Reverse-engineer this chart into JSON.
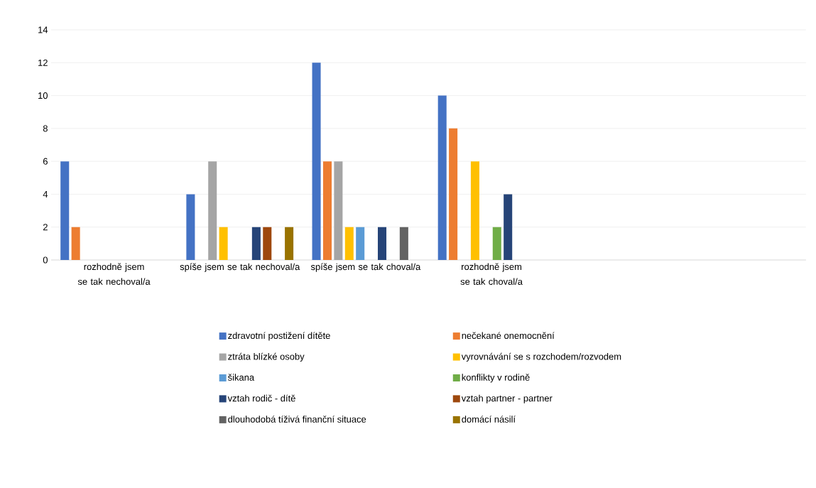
{
  "chart_data": {
    "type": "bar",
    "categories": [
      "rozhodně jsem se tak nechoval/a",
      "spíše jsem se tak nechoval/a",
      "spíše jsem se tak choval/a",
      "rozhodně jsem se tak choval/a",
      null,
      null
    ],
    "series": [
      {
        "name": "zdravotní postižení dítěte",
        "color": "#4472c4",
        "values": [
          6,
          4,
          12,
          10,
          null,
          null
        ]
      },
      {
        "name": "nečekané onemocnění",
        "color": "#ed7d31",
        "values": [
          2,
          null,
          6,
          8,
          null,
          null
        ]
      },
      {
        "name": "ztráta blízké osoby",
        "color": "#a5a5a5",
        "values": [
          null,
          6,
          6,
          null,
          null,
          null
        ]
      },
      {
        "name": "vyrovnávání se s rozchodem/rozvodem",
        "color": "#ffc000",
        "values": [
          null,
          2,
          2,
          6,
          null,
          null
        ]
      },
      {
        "name": "šikana",
        "color": "#5b9bd5",
        "values": [
          null,
          null,
          2,
          null,
          null,
          null
        ]
      },
      {
        "name": "konflikty v rodině",
        "color": "#70ad47",
        "values": [
          null,
          null,
          null,
          2,
          null,
          null
        ]
      },
      {
        "name": "vztah rodič - dítě",
        "color": "#264478",
        "values": [
          null,
          2,
          2,
          4,
          null,
          null
        ]
      },
      {
        "name": "vztah partner - partner",
        "color": "#9e480e",
        "values": [
          null,
          2,
          null,
          null,
          null,
          null
        ]
      },
      {
        "name": "dlouhodobá tíživá finanční situace",
        "color": "#636363",
        "values": [
          null,
          null,
          2,
          null,
          null,
          null
        ]
      },
      {
        "name": "domácí násilí",
        "color": "#997300",
        "values": [
          null,
          2,
          null,
          null,
          null,
          null
        ]
      }
    ],
    "ylim": [
      0,
      14
    ],
    "yticks": [
      0,
      2,
      4,
      6,
      8,
      10,
      12,
      14
    ],
    "grid": "y",
    "legend": "bottom"
  }
}
